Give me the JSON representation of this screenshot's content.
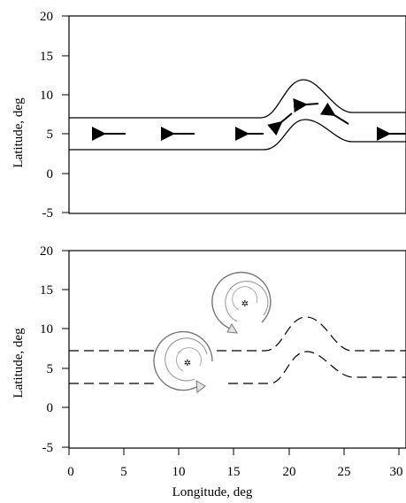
{
  "figure": {
    "top_panel": {
      "ylabel": "Latitude, deg",
      "yticks": [
        "20",
        "15",
        "10",
        "5",
        "0",
        "-5"
      ],
      "ylim": [
        -5,
        20
      ],
      "description": "zonal easterly jet channel with a northward bump near 20-26 deg longitude; arrows show westward flow"
    },
    "bottom_panel": {
      "ylabel": "Latitude, deg",
      "yticks": [
        "20",
        "15",
        "10",
        "5",
        "0",
        "-5"
      ],
      "ylim": [
        -5,
        20
      ],
      "xlabel": "Longitude, deg",
      "xticks": [
        "0",
        "5",
        "10",
        "15",
        "20",
        "25",
        "30"
      ],
      "xlim": [
        0,
        30
      ],
      "description": "dashed channel outline with two cyclonic vortices (circular arrows) located west of the bump"
    }
  }
}
